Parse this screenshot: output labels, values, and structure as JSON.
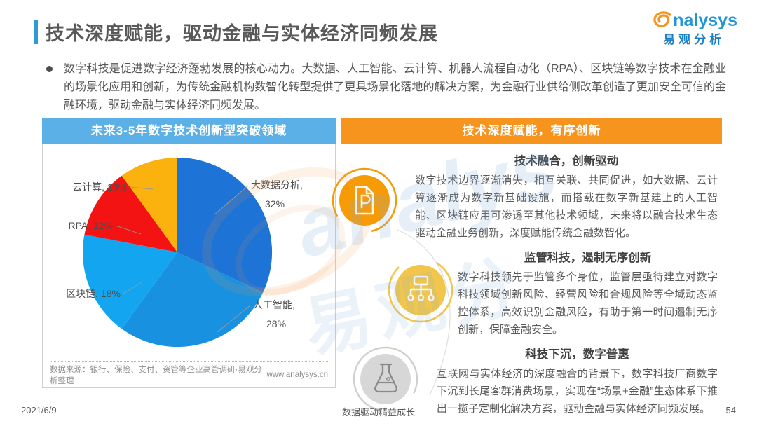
{
  "header": {
    "title": "技术深度赋能，驱动金融与实体经济同频发展",
    "logo": {
      "brand_latin": "nalysys",
      "brand_cn": "易观分析"
    }
  },
  "intro": {
    "text": "数字科技是促进数字经济蓬勃发展的核心动力。大数据、人工智能、云计算、机器人流程自动化（RPA）、区块链等数字技术在金融业的场景化应用和创新，为传统金融机构数智化转型提供了更具场景化落地的解决方案，为金融行业供给侧改革创造了更加安全可信的金融环境，驱动金融与实体经济同频发展。"
  },
  "left_panel": {
    "header": "未来3-5年数字技术创新型突破领域",
    "source": "数据来源：银行、保险、支付、资管等企业高管调研·易观分析整理",
    "site": "www.analysys.cn"
  },
  "chart_data": {
    "type": "pie",
    "title": "未来3-5年数字技术创新型突破领域",
    "labels": [
      "大数据分析",
      "人工智能",
      "区块链",
      "RPA",
      "云计算"
    ],
    "values": [
      32,
      28,
      18,
      12,
      10
    ],
    "unit": "%",
    "colors": [
      "#1E73D7",
      "#1991E1",
      "#14A5F0",
      "#F31313",
      "#FBB10E"
    ],
    "label_lines": [
      [
        "大数据分析,",
        "32%"
      ],
      [
        "人工智能,",
        "28%"
      ],
      [
        "区块链, 18%"
      ],
      [
        "RPA, 12%"
      ],
      [
        "云计算, 10%"
      ]
    ],
    "start_angle": 0,
    "legend": "none"
  },
  "right_panel": {
    "header": "技术深度赋能，有序创新",
    "sections": [
      {
        "icon": "document-p-icon",
        "title": "技术融合，创新驱动",
        "text": "数字技术边界逐渐消失，相互关联、共同促进，如大数据、云计算逐渐成为数字新基础设施，而搭载在数字新基建上的人工智能、区块链应用可渗透至其他技术领域，未来将以融合技术生态驱动金融业务创新，深度赋能传统金融数智化。"
      },
      {
        "icon": "org-chart-icon",
        "title": "监管科技，遏制无序创新",
        "text": "数字科技领先于监管多个身位，监管层亟待建立对数字科技领域创新风险、经营风险和合规风险等全域动态监控体系，高效识别金融风险，有助于第一时间遏制无序创新，保障金融安全。"
      },
      {
        "icon": "flask-icon",
        "title": "科技下沉，数字普惠",
        "text": "互联网与实体经济的深度融合的背景下，数字科技厂商数字下沉到长尾客群消费场景，实现在“场景+金融”生态体系下推出一揽子定制化解决方案，驱动金融与实体经济同频发展。"
      }
    ]
  },
  "watermark": {
    "latin": "analys",
    "cjk": "易观分"
  },
  "footer": {
    "date": "2021/6/9",
    "slogan": "数据驱动精益成长",
    "page": "54"
  },
  "colors": {
    "title_accent": "#2E9BD6",
    "left_banner": "#5BB0E8",
    "right_banner": "#F7941E",
    "icon_orange": "#F79B04",
    "icon_gold": "#F2C64B",
    "icon_gray": "#D7D7D7"
  }
}
